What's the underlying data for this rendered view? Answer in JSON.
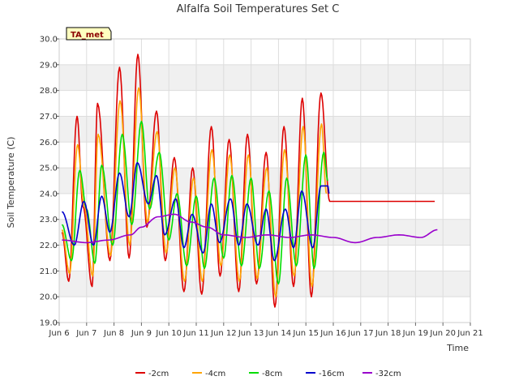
{
  "chart_data": {
    "type": "line",
    "title": "Alfalfa Soil Temperatures Set C",
    "xlabel": "Time",
    "ylabel": "Soil Temperature (C)",
    "tag": "TA_met",
    "ylim": [
      19.0,
      30.0
    ],
    "yticks": [
      "19.0",
      "20.0",
      "21.0",
      "22.0",
      "23.0",
      "24.0",
      "25.0",
      "26.0",
      "27.0",
      "28.0",
      "29.0",
      "30.0"
    ],
    "xlim": [
      6,
      21
    ],
    "xticks": [
      {
        "value": 6,
        "label": "Jun 6"
      },
      {
        "value": 7,
        "label": "Jun 7"
      },
      {
        "value": 8,
        "label": "Jun 8"
      },
      {
        "value": 9,
        "label": "Jun 9"
      },
      {
        "value": 10,
        "label": "Jun 10"
      },
      {
        "value": 11,
        "label": "Jun 11"
      },
      {
        "value": 12,
        "label": "Jun 12"
      },
      {
        "value": 13,
        "label": "Jun 13"
      },
      {
        "value": 14,
        "label": "Jun 14"
      },
      {
        "value": 15,
        "label": "Jun 15"
      },
      {
        "value": 16,
        "label": "Jun 16"
      },
      {
        "value": 17,
        "label": "Jun 17"
      },
      {
        "value": 18,
        "label": "Jun 18"
      },
      {
        "value": 19,
        "label": "Jun 19"
      },
      {
        "value": 20,
        "label": "Jun 20"
      },
      {
        "value": 21,
        "label": "Jun 21"
      }
    ],
    "grid": true,
    "legend_position": "bottom",
    "series": [
      {
        "name": "-2cm",
        "color": "#dd0000",
        "x": [
          6.1,
          6.35,
          6.65,
          6.87,
          7.2,
          7.4,
          7.85,
          8.2,
          8.55,
          8.87,
          9.2,
          9.55,
          9.87,
          10.2,
          10.55,
          10.87,
          11.2,
          11.55,
          11.87,
          12.2,
          12.55,
          12.87,
          13.2,
          13.55,
          13.87,
          14.2,
          14.55,
          14.87,
          15.2,
          15.55,
          15.87,
          16.2,
          16.55,
          16.87,
          17.2,
          17.55,
          17.87,
          18.2,
          18.55,
          18.87,
          19.2,
          19.55,
          19.7
        ],
        "y": [
          22.5,
          20.6,
          27.0,
          23.5,
          20.4,
          27.5,
          21.4,
          28.9,
          21.5,
          29.4,
          22.7,
          27.2,
          21.4,
          25.4,
          20.2,
          25.0,
          20.1,
          26.6,
          20.8,
          26.1,
          20.2,
          26.3,
          20.5,
          25.6,
          19.6,
          26.6,
          20.4,
          27.7,
          20.0,
          27.9,
          23.7,
          23.7,
          23.7,
          23.7,
          23.7,
          23.7,
          23.7,
          23.7,
          23.7,
          23.7,
          23.7,
          23.7,
          23.7
        ]
      },
      {
        "name": "-4cm",
        "color": "#ffa500",
        "x": [
          6.1,
          6.38,
          6.67,
          6.9,
          7.22,
          7.42,
          7.87,
          8.22,
          8.57,
          8.9,
          9.22,
          9.57,
          9.9,
          10.22,
          10.57,
          10.9,
          11.22,
          11.57,
          11.9,
          12.22,
          12.57,
          12.9,
          13.22,
          13.57,
          13.9,
          14.22,
          14.57,
          14.9,
          15.22,
          15.57,
          15.75
        ],
        "y": [
          22.6,
          20.9,
          25.9,
          23.6,
          20.8,
          26.3,
          21.6,
          27.6,
          22.0,
          28.1,
          22.9,
          26.4,
          21.7,
          25.0,
          20.6,
          24.6,
          20.6,
          25.7,
          21.2,
          25.5,
          20.6,
          25.5,
          20.7,
          25.0,
          20.0,
          25.7,
          20.8,
          26.6,
          20.4,
          26.7,
          24.0
        ]
      },
      {
        "name": "-8cm",
        "color": "#00dd00",
        "x": [
          6.1,
          6.45,
          6.75,
          7.0,
          7.3,
          7.55,
          7.95,
          8.3,
          8.65,
          9.0,
          9.3,
          9.65,
          10.0,
          10.3,
          10.65,
          11.0,
          11.3,
          11.65,
          12.0,
          12.3,
          12.65,
          13.0,
          13.3,
          13.65,
          14.0,
          14.3,
          14.65,
          15.0,
          15.3,
          15.65,
          15.8
        ],
        "y": [
          22.8,
          21.4,
          24.9,
          23.4,
          21.3,
          25.1,
          22.0,
          26.3,
          22.8,
          26.8,
          23.4,
          25.6,
          22.2,
          24.0,
          21.2,
          23.9,
          21.1,
          24.6,
          21.5,
          24.7,
          21.2,
          24.6,
          21.1,
          24.1,
          20.5,
          24.6,
          21.2,
          25.5,
          21.1,
          25.6,
          24.5
        ]
      },
      {
        "name": "-16cm",
        "color": "#0000cc",
        "x": [
          6.1,
          6.55,
          6.9,
          7.25,
          7.55,
          7.85,
          8.2,
          8.55,
          8.85,
          9.25,
          9.55,
          9.85,
          10.25,
          10.55,
          10.85,
          11.25,
          11.55,
          11.85,
          12.25,
          12.55,
          12.85,
          13.25,
          13.55,
          13.85,
          14.25,
          14.55,
          14.85,
          15.25,
          15.55,
          15.8,
          15.85
        ],
        "y": [
          23.3,
          22.0,
          23.7,
          22.0,
          23.9,
          22.5,
          24.8,
          23.1,
          25.2,
          23.6,
          24.7,
          22.4,
          23.8,
          21.9,
          23.2,
          21.7,
          23.6,
          22.1,
          23.8,
          22.0,
          23.6,
          22.0,
          23.4,
          21.4,
          23.4,
          21.9,
          24.1,
          21.9,
          24.3,
          24.3,
          24.0
        ]
      },
      {
        "name": "-32cm",
        "color": "#9900cc",
        "x": [
          6.1,
          7.0,
          7.8,
          8.6,
          9.0,
          9.6,
          10.2,
          10.8,
          11.4,
          12.0,
          12.8,
          13.6,
          14.4,
          15.2,
          16.0,
          16.8,
          17.6,
          18.4,
          19.2,
          19.8
        ],
        "y": [
          22.2,
          22.1,
          22.2,
          22.4,
          22.7,
          23.1,
          23.2,
          22.9,
          22.7,
          22.4,
          22.3,
          22.4,
          22.3,
          22.4,
          22.3,
          22.1,
          22.3,
          22.4,
          22.3,
          22.6
        ]
      }
    ]
  }
}
